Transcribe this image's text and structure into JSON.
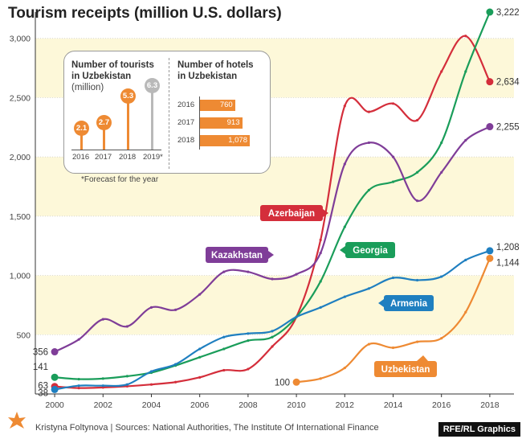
{
  "chart_data": {
    "type": "line",
    "title": "Tourism receipts (million U.S. dollars)",
    "x": [
      2000,
      2001,
      2002,
      2003,
      2004,
      2005,
      2006,
      2007,
      2008,
      2009,
      2010,
      2011,
      2012,
      2013,
      2014,
      2015,
      2016,
      2017,
      2018
    ],
    "xticks": [
      2000,
      2002,
      2004,
      2006,
      2008,
      2010,
      2012,
      2014,
      2016,
      2018
    ],
    "yticks": [
      500,
      1000,
      1500,
      2000,
      2500,
      3000
    ],
    "ytick_labels": [
      "500",
      "1,000",
      "1,500",
      "2,000",
      "2,500",
      "3,000"
    ],
    "xlim": [
      1999.2,
      2019
    ],
    "ylim": [
      0,
      3222
    ],
    "series": [
      {
        "name": "Azerbaijan",
        "color": "#d42e3b",
        "x": [
          2000,
          2001,
          2002,
          2003,
          2004,
          2005,
          2006,
          2007,
          2008,
          2009,
          2010,
          2011,
          2012,
          2013,
          2014,
          2015,
          2016,
          2017,
          2018
        ],
        "values": [
          63,
          50,
          55,
          65,
          80,
          100,
          140,
          200,
          210,
          400,
          650,
          1300,
          2430,
          2380,
          2450,
          2310,
          2720,
          3020,
          2634
        ],
        "start_label": "63",
        "end_label": "2,634"
      },
      {
        "name": "Georgia",
        "color": "#1a9d5a",
        "x": [
          2000,
          2001,
          2002,
          2003,
          2004,
          2005,
          2006,
          2007,
          2008,
          2009,
          2010,
          2011,
          2012,
          2013,
          2014,
          2015,
          2016,
          2017,
          2018
        ],
        "values": [
          141,
          125,
          130,
          150,
          180,
          240,
          310,
          380,
          450,
          480,
          650,
          950,
          1410,
          1720,
          1790,
          1870,
          2120,
          2720,
          3222
        ],
        "start_label": "141",
        "end_label": "3,222"
      },
      {
        "name": "Kazakhstan",
        "color": "#7f3d98",
        "x": [
          2000,
          2001,
          2002,
          2003,
          2004,
          2005,
          2006,
          2007,
          2008,
          2009,
          2010,
          2011,
          2012,
          2013,
          2014,
          2015,
          2016,
          2017,
          2018
        ],
        "values": [
          356,
          460,
          630,
          570,
          730,
          710,
          840,
          1030,
          1030,
          970,
          1010,
          1190,
          1940,
          2120,
          2000,
          1630,
          1870,
          2140,
          2255
        ],
        "start_label": "356",
        "end_label": "2,255"
      },
      {
        "name": "Armenia",
        "color": "#1f7fc0",
        "x": [
          2000,
          2001,
          2002,
          2003,
          2004,
          2005,
          2006,
          2007,
          2008,
          2009,
          2010,
          2011,
          2012,
          2013,
          2014,
          2015,
          2016,
          2017,
          2018
        ],
        "values": [
          38,
          70,
          70,
          80,
          190,
          250,
          380,
          480,
          510,
          530,
          650,
          730,
          820,
          890,
          980,
          960,
          990,
          1130,
          1208
        ],
        "start_label": "38",
        "end_label": "1,208"
      },
      {
        "name": "Uzbekistan",
        "color": "#ee8a33",
        "x": [
          2010,
          2011,
          2012,
          2013,
          2014,
          2015,
          2016,
          2017,
          2018
        ],
        "values": [
          100,
          130,
          220,
          420,
          390,
          440,
          470,
          690,
          1144
        ],
        "start_label": "100",
        "end_label": "1,144"
      }
    ]
  },
  "inset": {
    "tourists": {
      "title_line1": "Number of tourists",
      "title_line2": "in Uzbekistan",
      "unit": "(million)",
      "items": [
        {
          "year": "2016",
          "value": 2.1,
          "label": "2.1",
          "forecast": false
        },
        {
          "year": "2017",
          "value": 2.7,
          "label": "2.7",
          "forecast": false
        },
        {
          "year": "2018",
          "value": 5.3,
          "label": "5.3",
          "forecast": false
        },
        {
          "year": "2019*",
          "value": 6.3,
          "label": "6.3",
          "forecast": true
        }
      ],
      "bar_color": "#ee8a33",
      "forecast_color": "#b9b9b9"
    },
    "hotels": {
      "title_line1": "Number of hotels",
      "title_line2": "in Uzbekistan",
      "items": [
        {
          "year": "2016",
          "value": 760,
          "label": "760"
        },
        {
          "year": "2017",
          "value": 913,
          "label": "913"
        },
        {
          "year": "2018",
          "value": 1078,
          "label": "1,078"
        }
      ],
      "bar_color": "#ee8a33"
    },
    "footnote": "*Forecast for the year"
  },
  "footer": {
    "source": "Kristyna Foltynova | Sources: National Authorities, The Institute Of International Finance",
    "credit": "RFE/RL Graphics"
  },
  "colors": {
    "band": "#fdf8d9",
    "grid": "#c9c9c9",
    "axis": "#333333"
  }
}
